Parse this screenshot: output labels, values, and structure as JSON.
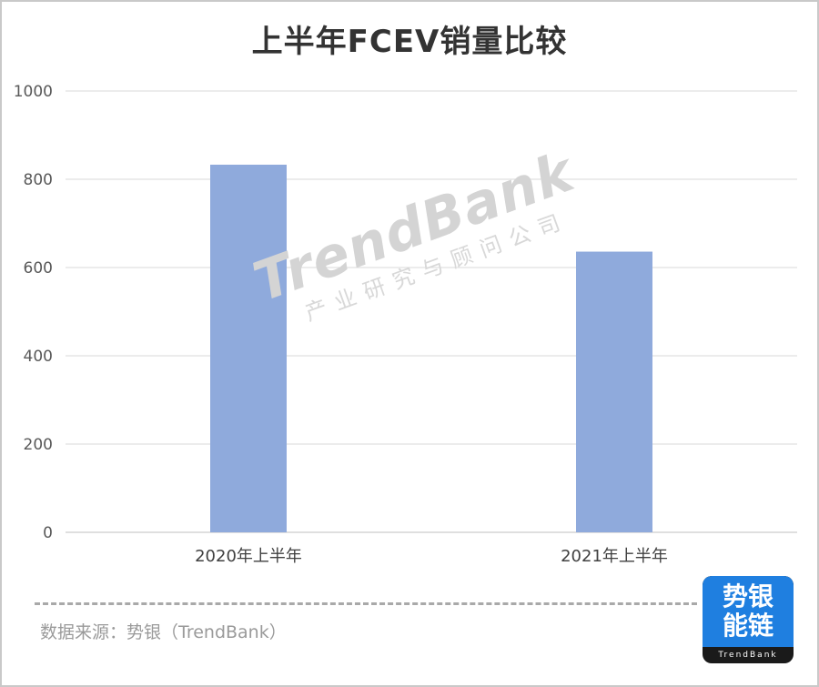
{
  "chart_data": {
    "type": "bar",
    "title": "上半年FCEV销量比较",
    "categories": [
      "2020年上半年",
      "2021年上半年"
    ],
    "values": [
      833,
      636
    ],
    "ylim": [
      0,
      1000
    ],
    "yticks": [
      0,
      200,
      400,
      600,
      800,
      1000
    ],
    "grid": true,
    "bar_color": "#8faadc"
  },
  "watermark": {
    "logo": "TrendBank",
    "subtitle": "产业研究与顾问公司"
  },
  "footer": {
    "source": "数据来源：势银（TrendBank）"
  },
  "badge": {
    "line1": "势银",
    "line2": "能链",
    "brand": "TrendBank",
    "color": "#1f7fe0"
  }
}
